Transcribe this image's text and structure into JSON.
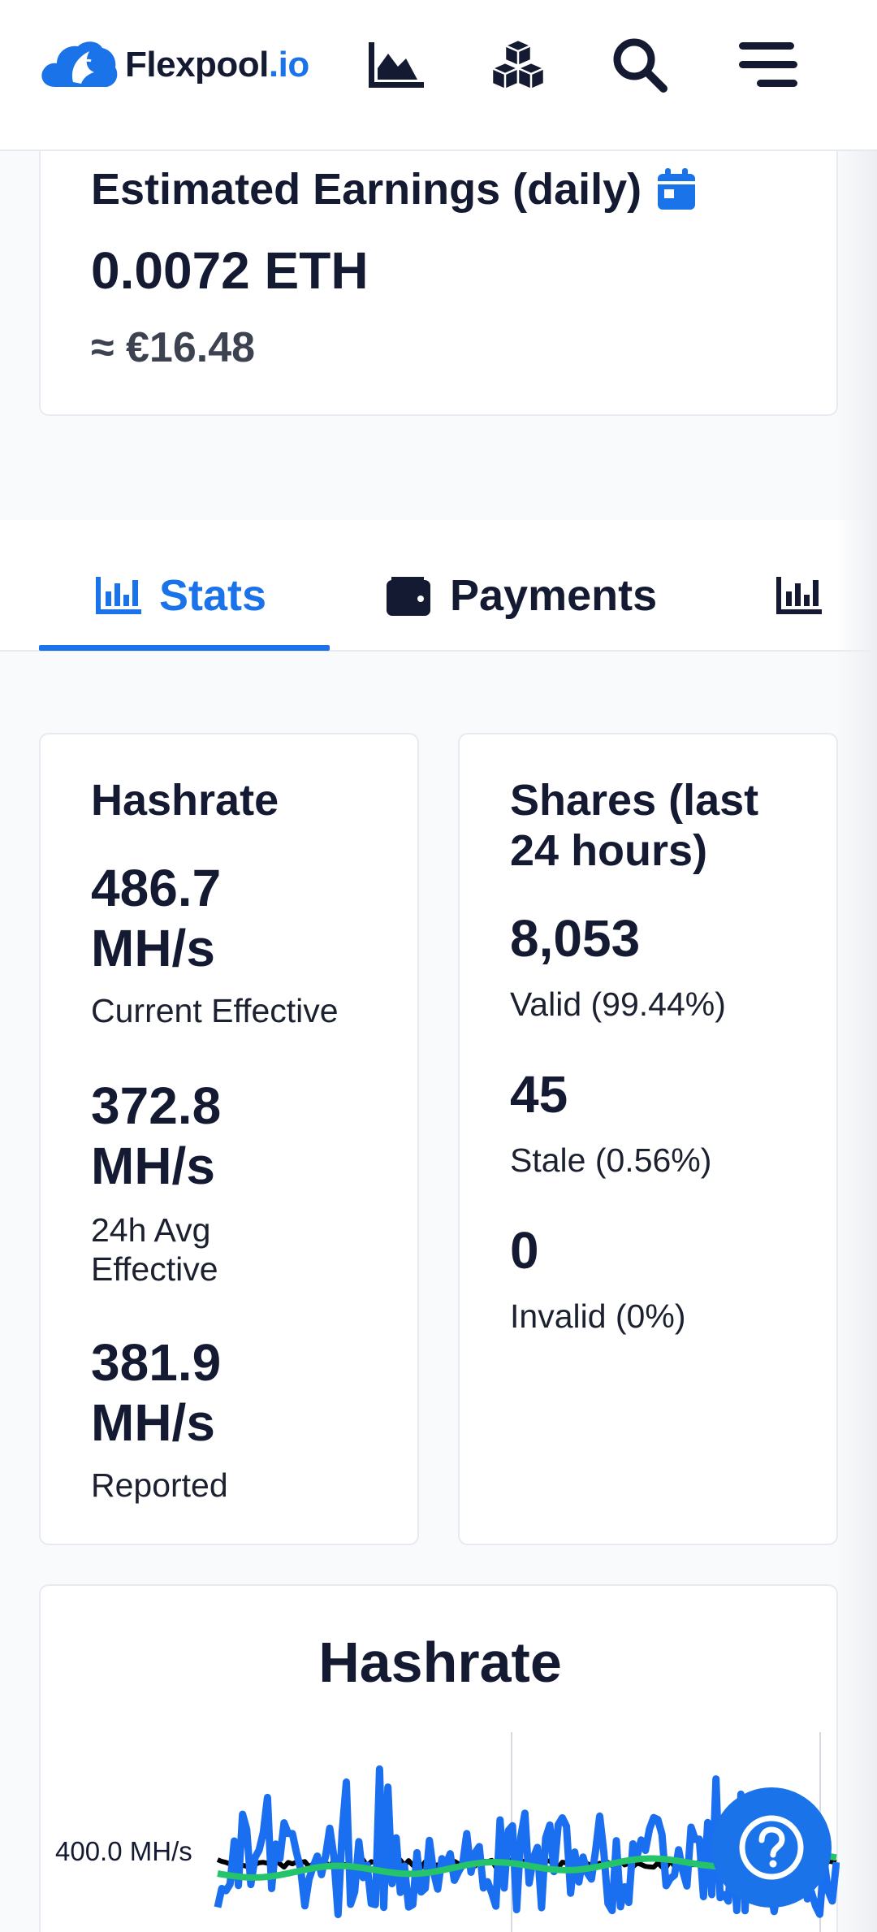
{
  "header": {
    "logo_text_main": "Flexpool",
    "logo_text_tld": ".io",
    "icons": [
      "cloud-logo-icon",
      "chart-area-icon",
      "cubes-icon",
      "search-icon",
      "menu-icon"
    ]
  },
  "earnings": {
    "title": "Estimated Earnings (daily)",
    "eth": "0.0072 ETH",
    "fiat": "≈ €16.48"
  },
  "tabs": [
    {
      "label": "Stats",
      "icon": "bar-chart-icon",
      "active": true
    },
    {
      "label": "Payments",
      "icon": "wallet-icon",
      "active": false
    },
    {
      "label": "",
      "icon": "bar-chart-icon",
      "active": false
    }
  ],
  "hashrate": {
    "title": "Hashrate",
    "items": [
      {
        "value": "486.7",
        "unit": "MH/s",
        "label": "Current Effective"
      },
      {
        "value": "372.8",
        "unit": "MH/s",
        "label_line1": "24h Avg",
        "label_line2": "Effective"
      },
      {
        "value": "381.9",
        "unit": "MH/s",
        "label": "Reported"
      }
    ]
  },
  "shares": {
    "title_line1": "Shares (last",
    "title_line2": "24 hours)",
    "items": [
      {
        "value": "8,053",
        "label": "Valid (99.44%)"
      },
      {
        "value": "45",
        "label": "Stale (0.56%)"
      },
      {
        "value": "0",
        "label": "Invalid (0%)"
      }
    ]
  },
  "chart_data": {
    "type": "line",
    "title": "Hashrate",
    "y_tick_labels": [
      "400.0 MH/s"
    ],
    "series": [
      {
        "color": "#1a6ef0"
      },
      {
        "color": "#25c46b"
      },
      {
        "color": "#000000"
      }
    ]
  },
  "colors": {
    "accent": "#1a73e8",
    "text": "#151a33",
    "current_series": "#1a6ef0",
    "average_series": "#25c46b",
    "reported_series": "#000000"
  },
  "fab": {
    "icon": "help-icon"
  }
}
